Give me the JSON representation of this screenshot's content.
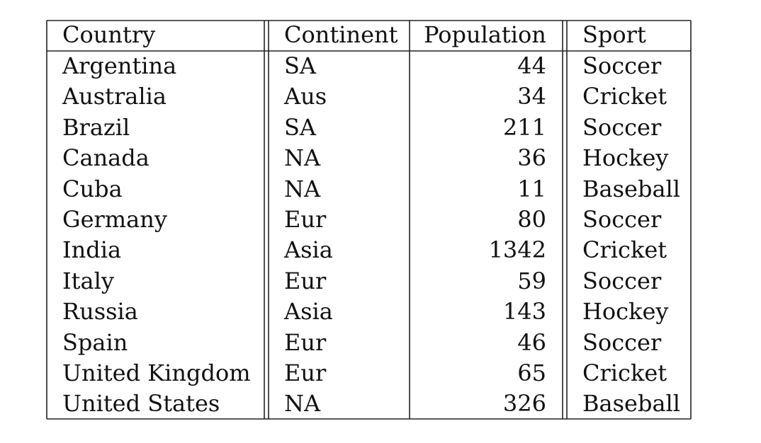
{
  "table": {
    "headers": [
      "Country",
      "Continent",
      "Population",
      "Sport"
    ],
    "rows": [
      [
        "Argentina",
        "SA",
        "44",
        "Soccer"
      ],
      [
        "Australia",
        "Aus",
        "34",
        "Cricket"
      ],
      [
        "Brazil",
        "SA",
        "211",
        "Soccer"
      ],
      [
        "Canada",
        "NA",
        "36",
        "Hockey"
      ],
      [
        "Cuba",
        "NA",
        "11",
        "Baseball"
      ],
      [
        "Germany",
        "Eur",
        "80",
        "Soccer"
      ],
      [
        "India",
        "Asia",
        "1342",
        "Cricket"
      ],
      [
        "Italy",
        "Eur",
        "59",
        "Soccer"
      ],
      [
        "Russia",
        "Asia",
        "143",
        "Hockey"
      ],
      [
        "Spain",
        "Eur",
        "46",
        "Soccer"
      ],
      [
        "United Kingdom",
        "Eur",
        "65",
        "Cricket"
      ],
      [
        "United States",
        "NA",
        "326",
        "Baseball"
      ]
    ]
  }
}
